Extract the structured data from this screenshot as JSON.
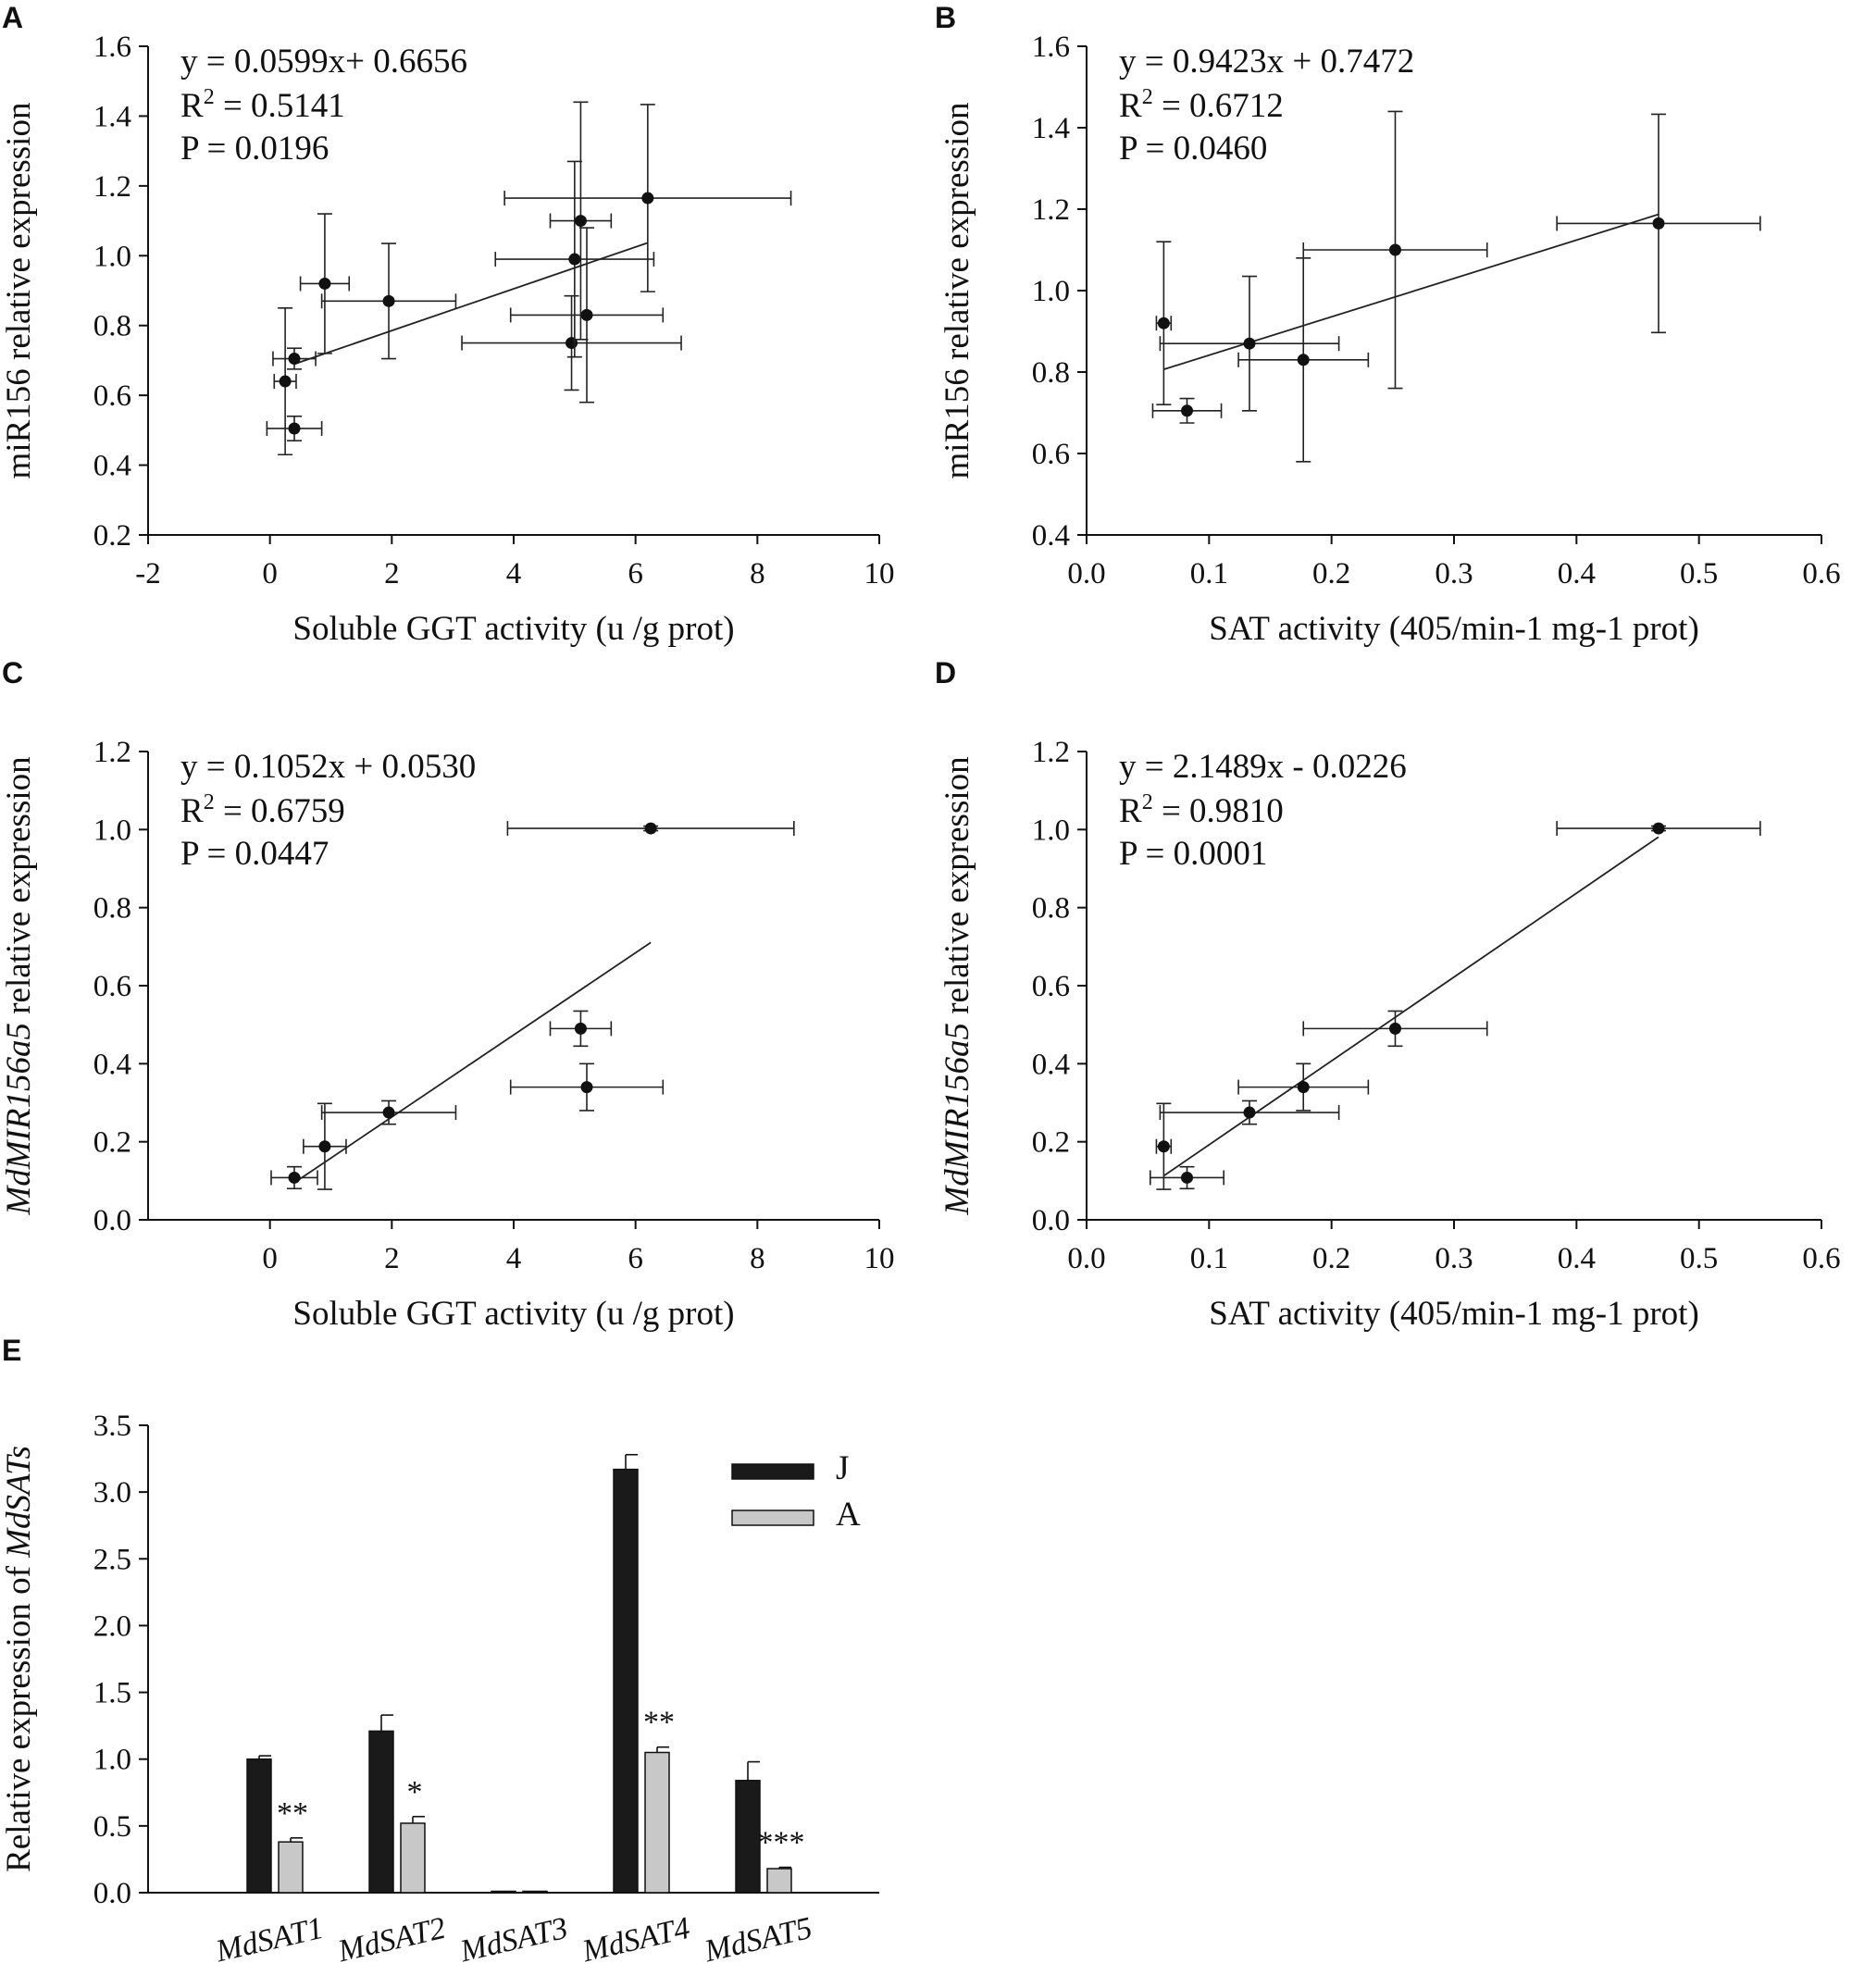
{
  "chart_data": [
    {
      "panel": "A",
      "type": "scatter",
      "xlabel": "Soluble GGT activity (u /g prot)",
      "ylabel": "miR156 relative expression",
      "xlim": [
        -2,
        10
      ],
      "ylim": [
        0.2,
        1.6
      ],
      "xticks": [
        -2,
        0,
        2,
        4,
        6,
        8,
        10
      ],
      "yticks": [
        0.2,
        0.4,
        0.6,
        0.8,
        1.0,
        1.2,
        1.4,
        1.6
      ],
      "xdec": 0,
      "ydec": 1,
      "annotation": {
        "equation": "y   = 0.0599x+ 0.6656",
        "r2_prefix": "R",
        "r2_sup": "2",
        "r2_value": " = 0.5141",
        "p": "P   = 0.0196"
      },
      "points": [
        {
          "x": 0.4,
          "y": 0.505,
          "xerr": 0.45,
          "yerr": 0.035
        },
        {
          "x": 0.25,
          "y": 0.64,
          "xerr": 0.18,
          "yerr": 0.21
        },
        {
          "x": 0.4,
          "y": 0.705,
          "xerr": 0.35,
          "yerr": 0.03
        },
        {
          "x": 0.9,
          "y": 0.92,
          "xerr": 0.4,
          "yerr": 0.2
        },
        {
          "x": 1.95,
          "y": 0.87,
          "xerr": 1.1,
          "yerr": 0.165
        },
        {
          "x": 4.95,
          "y": 0.75,
          "xerr": 1.8,
          "yerr": 0.135
        },
        {
          "x": 5.2,
          "y": 0.83,
          "xerr": 1.25,
          "yerr": 0.25
        },
        {
          "x": 5.0,
          "y": 0.99,
          "xerr": 1.3,
          "yerr": 0.28
        },
        {
          "x": 5.1,
          "y": 1.1,
          "xerr": 0.5,
          "yerr": 0.34
        },
        {
          "x": 6.2,
          "y": 1.165,
          "xerr": 2.35,
          "yerr": 0.268
        }
      ],
      "fit": {
        "slope": 0.0599,
        "intercept": 0.6656,
        "x_range": [
          0.4,
          6.2
        ]
      }
    },
    {
      "panel": "B",
      "type": "scatter",
      "xlabel": "SAT activity (405/min-1 mg-1 prot)",
      "ylabel": "miR156 relative expression",
      "xlim": [
        0,
        0.6
      ],
      "ylim": [
        0.4,
        1.6
      ],
      "xticks": [
        0,
        0.1,
        0.2,
        0.3,
        0.4,
        0.5,
        0.6
      ],
      "yticks": [
        0.4,
        0.6,
        0.8,
        1.0,
        1.2,
        1.4,
        1.6
      ],
      "xdec": 1,
      "ydec": 1,
      "annotation": {
        "equation": "y   = 0.9423x + 0.7472",
        "r2_prefix": "R",
        "r2_sup": "2",
        "r2_value": " = 0.6712",
        "p": "P   = 0.0460"
      },
      "points": [
        {
          "x": 0.063,
          "y": 0.92,
          "xerr": 0.006,
          "yerr": 0.2
        },
        {
          "x": 0.082,
          "y": 0.705,
          "xerr": 0.028,
          "yerr": 0.03
        },
        {
          "x": 0.133,
          "y": 0.87,
          "xerr": 0.073,
          "yerr": 0.165
        },
        {
          "x": 0.177,
          "y": 0.83,
          "xerr": 0.053,
          "yerr": 0.25
        },
        {
          "x": 0.252,
          "y": 1.1,
          "xerr": 0.075,
          "yerr": 0.34
        },
        {
          "x": 0.467,
          "y": 1.165,
          "xerr": 0.083,
          "yerr": 0.268
        }
      ],
      "fit": {
        "slope": 0.9423,
        "intercept": 0.7472,
        "x_range": [
          0.063,
          0.467
        ]
      }
    },
    {
      "panel": "C",
      "type": "scatter",
      "xlabel": "Soluble GGT activity (u /g prot)",
      "ylabel": "MdMIR156a5 relative expression",
      "ylabel_italic_part": "MdMIR156a5",
      "ylabel_rest": " relative expression",
      "xlim": [
        -2,
        10
      ],
      "ylim": [
        0,
        1.2
      ],
      "xticks": [
        0,
        2,
        4,
        6,
        8,
        10
      ],
      "yticks": [
        0,
        0.2,
        0.4,
        0.6,
        0.8,
        1.0,
        1.2
      ],
      "xdec": 0,
      "ydec": 1,
      "annotation": {
        "equation": "y   = 0.1052x + 0.0530",
        "r2_prefix": "R",
        "r2_sup": "2",
        "r2_value": " = 0.6759",
        "p": "P   = 0.0447"
      },
      "points": [
        {
          "x": 0.4,
          "y": 0.108,
          "xerr": 0.38,
          "yerr": 0.028
        },
        {
          "x": 0.9,
          "y": 0.188,
          "xerr": 0.35,
          "yerr": 0.11
        },
        {
          "x": 1.95,
          "y": 0.275,
          "xerr": 1.1,
          "yerr": 0.03
        },
        {
          "x": 5.1,
          "y": 0.49,
          "xerr": 0.5,
          "yerr": 0.045
        },
        {
          "x": 5.2,
          "y": 0.34,
          "xerr": 1.25,
          "yerr": 0.06
        },
        {
          "x": 6.25,
          "y": 1.003,
          "xerr": 2.35,
          "yerr": 0.006
        }
      ],
      "fit": {
        "slope": 0.1052,
        "intercept": 0.053,
        "x_range": [
          0.4,
          6.25
        ]
      }
    },
    {
      "panel": "D",
      "type": "scatter",
      "xlabel": "SAT activity (405/min-1 mg-1 prot)",
      "ylabel": "MdMIR156a5 relative expression",
      "ylabel_italic_part": "MdMIR156a5",
      "ylabel_rest": " relative expression",
      "xlim": [
        0,
        0.6
      ],
      "ylim": [
        0,
        1.2
      ],
      "xticks": [
        0,
        0.1,
        0.2,
        0.3,
        0.4,
        0.5,
        0.6
      ],
      "yticks": [
        0,
        0.2,
        0.4,
        0.6,
        0.8,
        1.0,
        1.2
      ],
      "xdec": 1,
      "ydec": 1,
      "annotation": {
        "equation": "y   = 2.1489x - 0.0226",
        "r2_prefix": "R",
        "r2_sup": "2",
        "r2_value": " = 0.9810",
        "p": "P   = 0.0001"
      },
      "points": [
        {
          "x": 0.063,
          "y": 0.188,
          "xerr": 0.006,
          "yerr": 0.11
        },
        {
          "x": 0.082,
          "y": 0.108,
          "xerr": 0.03,
          "yerr": 0.028
        },
        {
          "x": 0.133,
          "y": 0.275,
          "xerr": 0.073,
          "yerr": 0.03
        },
        {
          "x": 0.177,
          "y": 0.34,
          "xerr": 0.053,
          "yerr": 0.06
        },
        {
          "x": 0.252,
          "y": 0.49,
          "xerr": 0.075,
          "yerr": 0.045
        },
        {
          "x": 0.467,
          "y": 1.003,
          "xerr": 0.083,
          "yerr": 0.006
        }
      ],
      "fit": {
        "slope": 2.1489,
        "intercept": -0.0226,
        "x_range": [
          0.063,
          0.467
        ]
      }
    },
    {
      "panel": "E",
      "type": "bar",
      "ylabel_prefix": "Relative expression of ",
      "ylabel_italic_part": "MdSATs",
      "ylim": [
        0,
        3.5
      ],
      "yticks": [
        0,
        0.5,
        1.0,
        1.5,
        2.0,
        2.5,
        3.0,
        3.5
      ],
      "ydec": 1,
      "categories": [
        "MdSAT1",
        "MdSAT2",
        "MdSAT3",
        "MdSAT4",
        "MdSAT5"
      ],
      "series": [
        {
          "name": "J",
          "color": "#1a1a1a",
          "values": [
            1.0,
            1.21,
            0.0,
            3.17,
            0.84
          ],
          "errors": [
            0.025,
            0.12,
            0.0,
            0.11,
            0.14
          ]
        },
        {
          "name": "A",
          "color": "#c8c8c8",
          "values": [
            0.38,
            0.52,
            0.01,
            1.05,
            0.18
          ],
          "errors": [
            0.03,
            0.05,
            0.0,
            0.04,
            0.01
          ]
        }
      ],
      "significance": [
        "**",
        "*",
        "",
        "**",
        "***"
      ],
      "legend_location": "top-right"
    }
  ]
}
